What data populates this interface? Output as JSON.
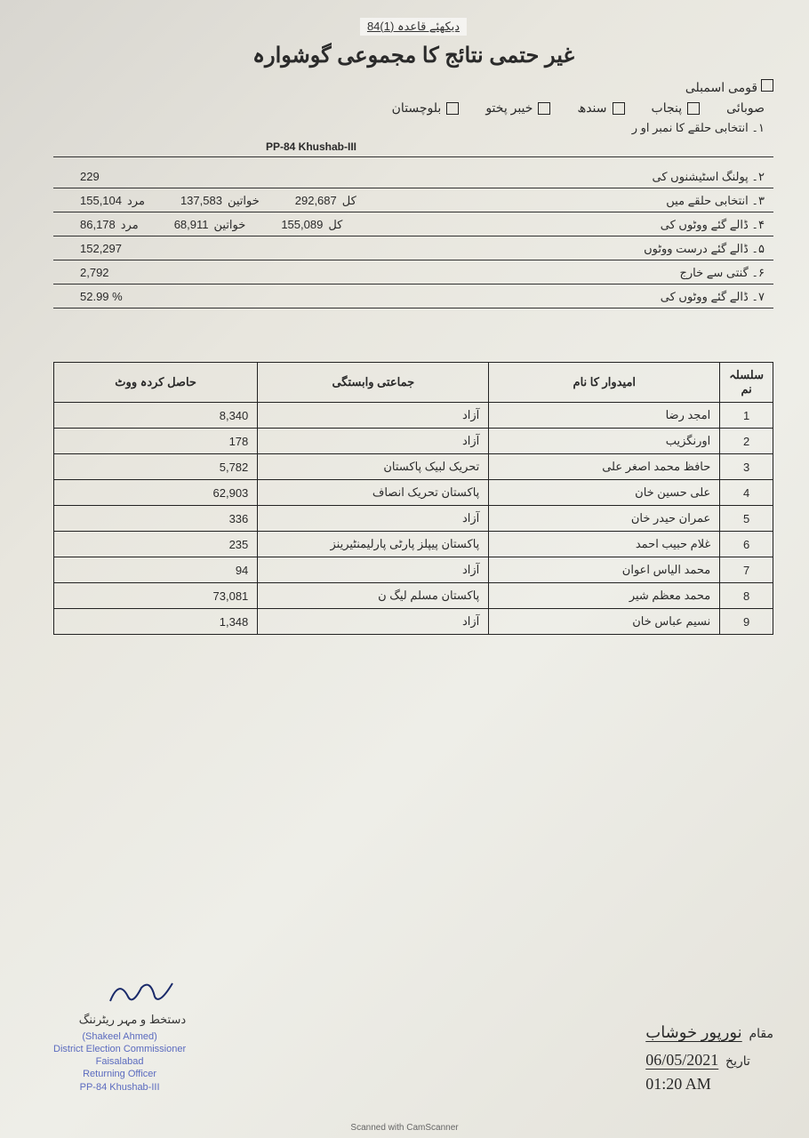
{
  "header": {
    "rule_ref": "دیکھئے قاعدہ (1)84",
    "title": "غیر حتمی نتائج کا مجموعی گوشوارہ",
    "national_assembly": "قومی اسمبلی",
    "provincial_label": "صوبائی",
    "provinces": {
      "punjab": "پنجاب",
      "sindh": "سندھ",
      "kp": "خیبر پختو",
      "balochistan": "بلوچستان"
    },
    "constituency_label": "۱۔  انتخابی حلقے کا نمبر او ر",
    "constituency_code": "PP-84 Khushab-III"
  },
  "stats": {
    "male_label": "مرد",
    "female_label": "خواتین",
    "total_label": "کل",
    "rows": [
      {
        "no": "۲۔",
        "label": "پولنگ اسٹیشنوں کی",
        "single": "229"
      },
      {
        "no": "۳۔",
        "label": "انتخابی حلقے میں",
        "male": "155,104",
        "female": "137,583",
        "total": "292,687"
      },
      {
        "no": "۴۔",
        "label": "ڈالے گئے ووٹوں کی",
        "male": "86,178",
        "female": "68,911",
        "total": "155,089"
      },
      {
        "no": "۵۔",
        "label": "ڈالے گئے درست ووٹوں",
        "single": "152,297"
      },
      {
        "no": "۶۔",
        "label": "گنتی سے خارج",
        "single": "2,792"
      },
      {
        "no": "۷۔",
        "label": "ڈالے گئے ووٹوں کی",
        "single": "52.99   %"
      }
    ]
  },
  "table": {
    "headers": {
      "sno": "سلسلہ نم",
      "name": "امیدوار کا نام",
      "party": "جماعتی وابستگی",
      "votes": "حاصل کردہ ووٹ"
    },
    "rows": [
      {
        "sno": "1",
        "name": "امجد رضا",
        "party": "آزاد",
        "votes": "8,340"
      },
      {
        "sno": "2",
        "name": "اورنگزیب",
        "party": "آزاد",
        "votes": "178"
      },
      {
        "sno": "3",
        "name": "حافظ محمد اصغر علی",
        "party": "تحریک لبیک پاکستان",
        "votes": "5,782"
      },
      {
        "sno": "4",
        "name": "علی حسین خان",
        "party": "پاکستان تحریک انصاف",
        "votes": "62,903"
      },
      {
        "sno": "5",
        "name": "عمران حیدر خان",
        "party": "آزاد",
        "votes": "336"
      },
      {
        "sno": "6",
        "name": "غلام حبیب احمد",
        "party": "پاکستان پیپلز پارٹی پارلیمنٹیرینز",
        "votes": "235"
      },
      {
        "sno": "7",
        "name": "محمد الیاس اعوان",
        "party": "آزاد",
        "votes": "94"
      },
      {
        "sno": "8",
        "name": "محمد معظم شیر",
        "party": "پاکستان مسلم لیگ ن",
        "votes": "73,081"
      },
      {
        "sno": "9",
        "name": "نسیم عباس خان",
        "party": "آزاد",
        "votes": "1,348"
      }
    ]
  },
  "footer": {
    "sig_label": "دستخط و مہر ریٹرننگ",
    "stamp_name": "(Shakeel Ahmed)",
    "stamp_line2": "District Election Commissioner",
    "stamp_line3": "Faisalabad",
    "stamp_line4": "Returning Officer",
    "stamp_line5": "PP-84 Khushab-III",
    "place_label": "مقام",
    "place_value": "نورپور خوشاب",
    "date_label": "تاریخ",
    "date_value": "06/05/2021",
    "time_value": "01:20 AM",
    "scan_mark": "Scanned with CamScanner"
  },
  "colors": {
    "text": "#2a2a2a",
    "border": "#222222",
    "stamp": "#5b6bbf",
    "bg_light": "#eeeee8",
    "bg_dark": "#d8d6d0"
  }
}
